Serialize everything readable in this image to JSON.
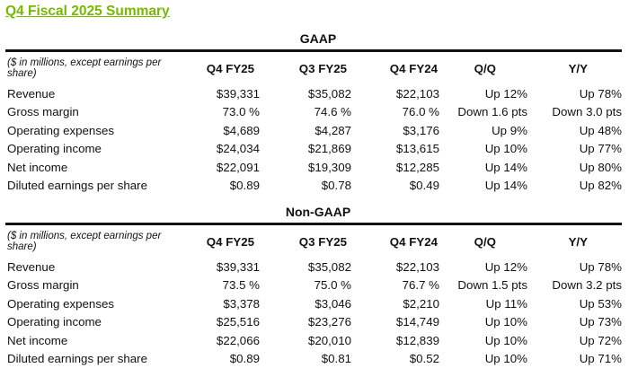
{
  "title": "Q4 Fiscal 2025 Summary",
  "colors": {
    "title": "#76b900"
  },
  "sections": [
    {
      "name": "GAAP",
      "header": [
        "($ in millions, except earnings per share)",
        "Q4 FY25",
        "Q3 FY25",
        "Q4 FY24",
        "Q/Q",
        "Y/Y"
      ],
      "rows": [
        [
          "Revenue",
          "$39,331",
          "$35,082",
          "$22,103",
          "Up 12%",
          "Up 78%"
        ],
        [
          "Gross margin",
          "73.0 %",
          "74.6 %",
          "76.0 %",
          "Down 1.6 pts",
          "Down 3.0 pts"
        ],
        [
          "Operating expenses",
          "$4,689",
          "$4,287",
          "$3,176",
          "Up 9%",
          "Up 48%"
        ],
        [
          "Operating income",
          "$24,034",
          "$21,869",
          "$13,615",
          "Up 10%",
          "Up 77%"
        ],
        [
          "Net income",
          "$22,091",
          "$19,309",
          "$12,285",
          "Up 14%",
          "Up 80%"
        ],
        [
          "Diluted earnings per share",
          "$0.89",
          "$0.78",
          "$0.49",
          "Up 14%",
          "Up 82%"
        ]
      ]
    },
    {
      "name": "Non-GAAP",
      "header": [
        "($ in millions, except earnings per share)",
        "Q4 FY25",
        "Q3 FY25",
        "Q4 FY24",
        "Q/Q",
        "Y/Y"
      ],
      "rows": [
        [
          "Revenue",
          "$39,331",
          "$35,082",
          "$22,103",
          "Up 12%",
          "Up 78%"
        ],
        [
          "Gross margin",
          "73.5 %",
          "75.0 %",
          "76.7 %",
          "Down 1.5 pts",
          "Down 3.2 pts"
        ],
        [
          "Operating expenses",
          "$3,378",
          "$3,046",
          "$2,210",
          "Up 11%",
          "Up 53%"
        ],
        [
          "Operating income",
          "$25,516",
          "$23,276",
          "$14,749",
          "Up 10%",
          "Up 73%"
        ],
        [
          "Net income",
          "$22,066",
          "$20,010",
          "$12,839",
          "Up 10%",
          "Up 72%"
        ],
        [
          "Diluted earnings per share",
          "$0.89",
          "$0.81",
          "$0.52",
          "Up 10%",
          "Up 71%"
        ]
      ]
    }
  ]
}
